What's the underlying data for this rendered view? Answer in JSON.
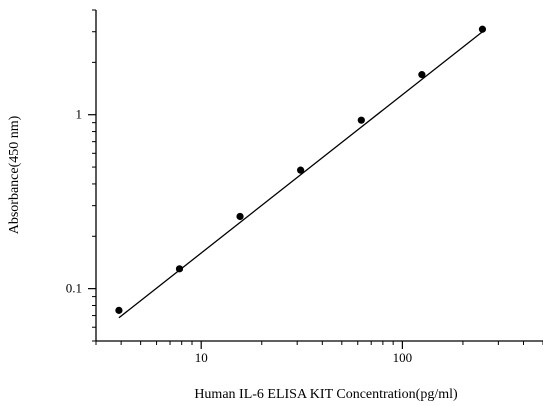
{
  "chart_data": {
    "type": "scatter",
    "title": "",
    "xlabel": "Human IL-6 ELISA KIT Concentration(pg/ml)",
    "ylabel": "Absorbance(450 nm)",
    "x_scale": "log",
    "y_scale": "log",
    "xlim": [
      3,
      500
    ],
    "ylim": [
      0.05,
      4
    ],
    "x_ticks": [
      10,
      100
    ],
    "x_tick_labels": [
      "10",
      "100"
    ],
    "y_ticks": [
      0.1,
      1
    ],
    "y_tick_labels": [
      "0.1",
      "1"
    ],
    "grid": false,
    "legend": "none",
    "series": [
      {
        "x": [
          3.9,
          7.8,
          15.6,
          31.2,
          62.5,
          125,
          250
        ],
        "y": [
          0.075,
          0.13,
          0.26,
          0.48,
          0.93,
          1.7,
          3.1
        ]
      }
    ],
    "fit_line": {
      "x": [
        3.9,
        250
      ],
      "y": [
        0.068,
        3.0
      ]
    }
  }
}
